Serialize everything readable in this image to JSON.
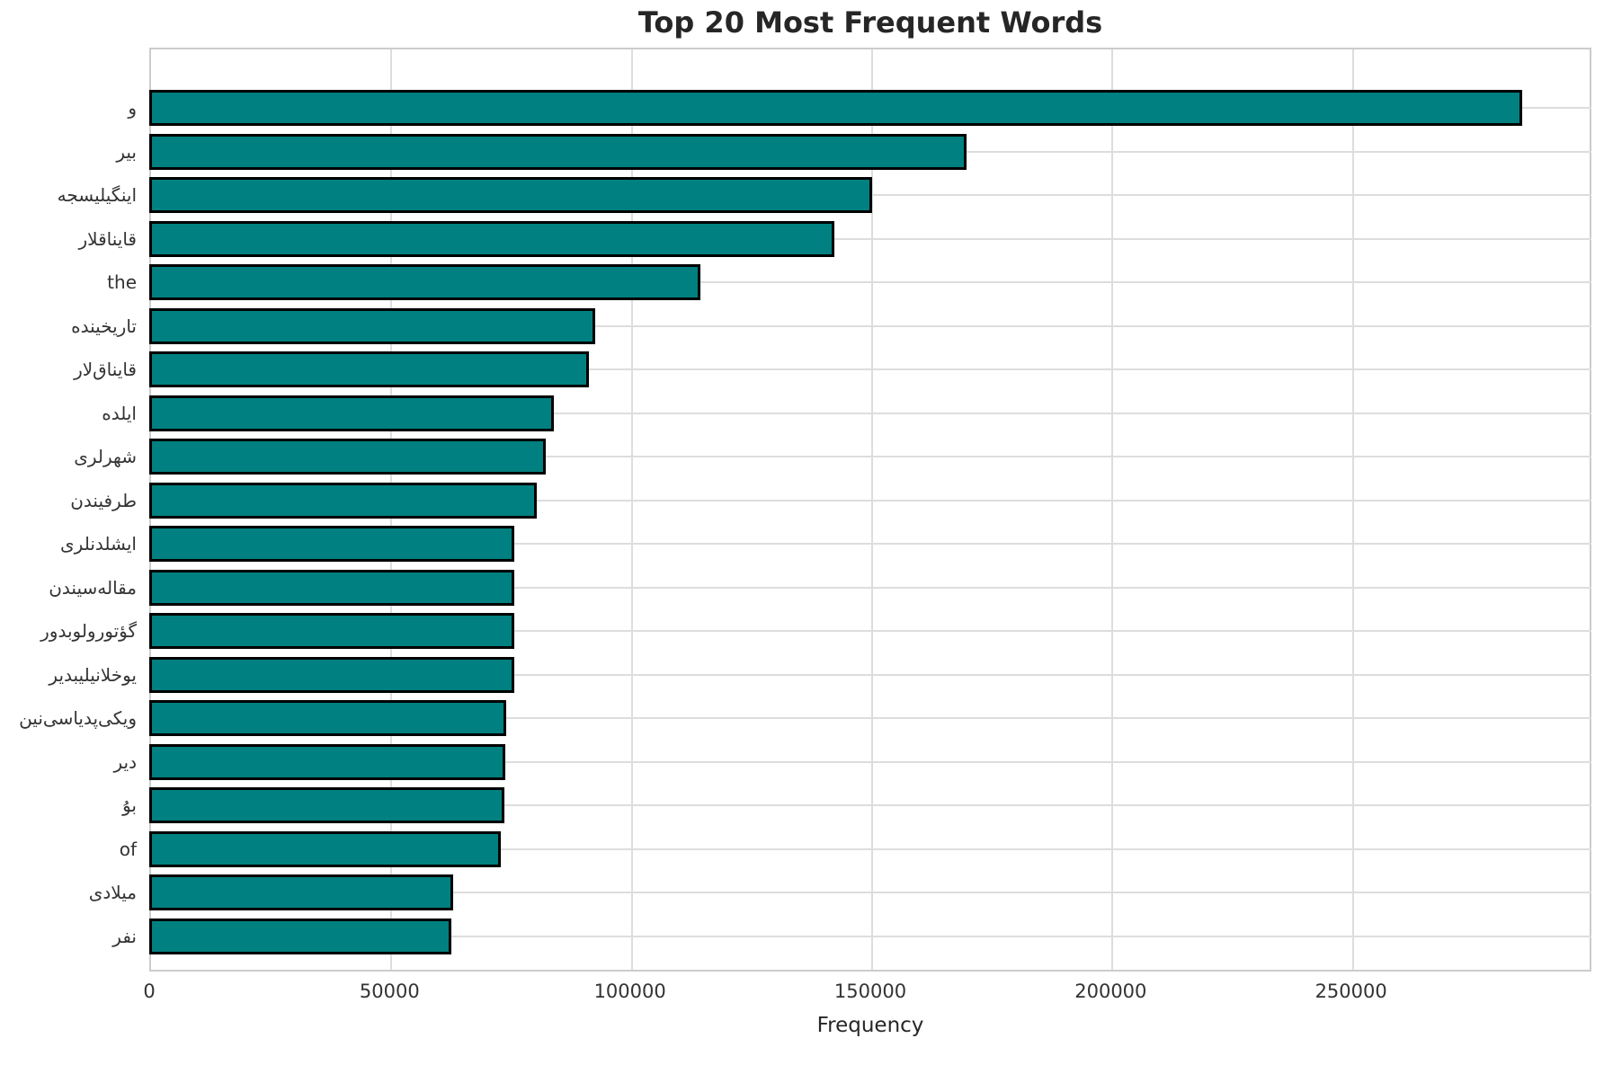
{
  "chart_data": {
    "type": "bar",
    "orientation": "horizontal",
    "title": "Top 20 Most Frequent Words",
    "xlabel": "Frequency",
    "ylabel": "",
    "xlim": [
      0,
      300000
    ],
    "x_ticks": [
      0,
      50000,
      100000,
      150000,
      200000,
      250000
    ],
    "grid": true,
    "legend": false,
    "bar_color": "#008080",
    "bar_edge_color": "#000000",
    "grid_color": "#dddddd",
    "categories": [
      "و",
      "بیر",
      "اینگیلیسجه",
      "قایناقلار",
      "the",
      "تاریخینده",
      "قایناق‌لار",
      "ایلده",
      "شهرلری",
      "طرفیندن",
      "ایشلدنلری",
      "مقاله‌سیندن",
      "گؤتورولوبدور",
      "یوخلانیلیبدیر",
      "ویکی‌پدیاسی‌نین",
      "دیر",
      "بۇ",
      "of",
      "میلادی",
      "نفر"
    ],
    "values": [
      285600,
      170000,
      150400,
      142500,
      114700,
      92700,
      91500,
      84200,
      82400,
      80700,
      76000,
      76000,
      76000,
      76000,
      74200,
      74000,
      73800,
      73200,
      63300,
      62800
    ]
  }
}
